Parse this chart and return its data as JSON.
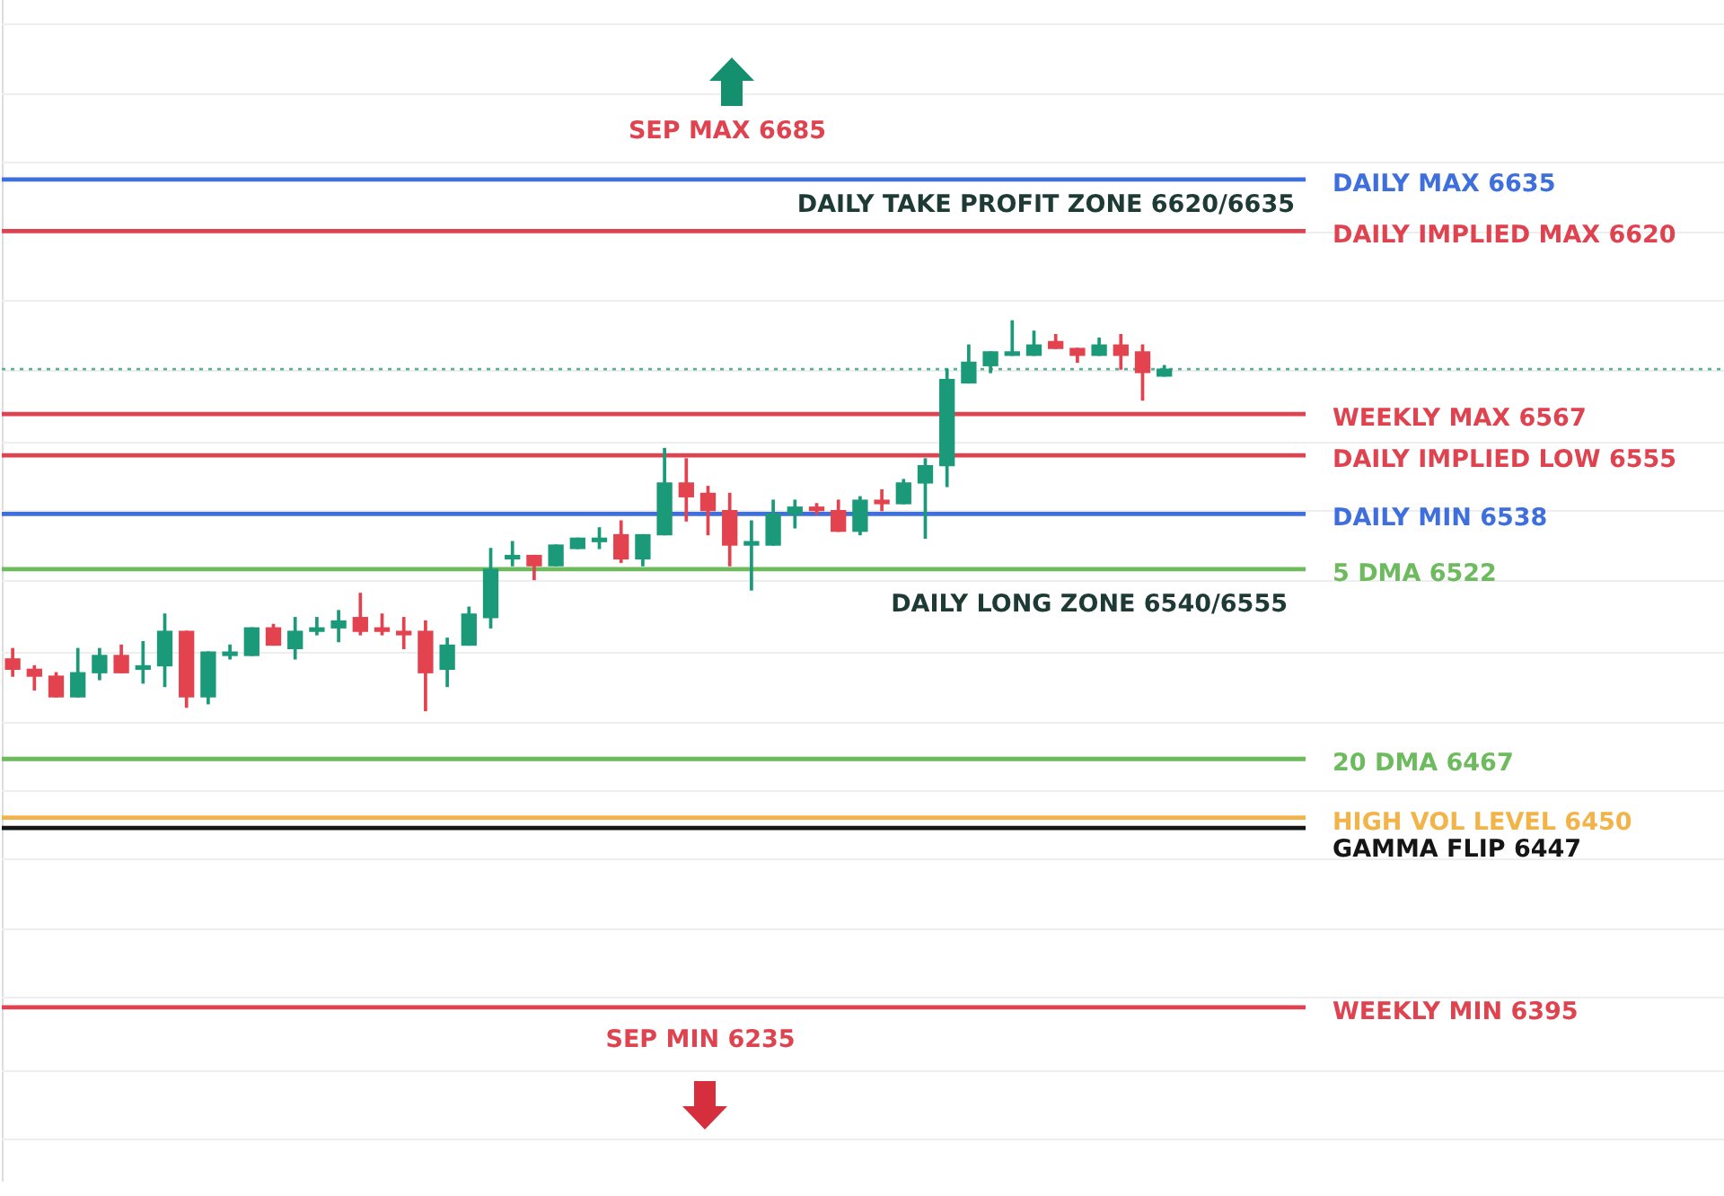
{
  "chart_data": {
    "type": "candlestick",
    "categories": [
      null,
      null,
      null,
      null,
      null,
      null,
      null,
      null,
      null,
      null,
      null,
      null,
      null,
      null,
      null,
      null,
      null,
      null,
      null,
      null,
      null,
      null,
      null,
      null,
      null,
      null,
      null,
      null,
      null,
      null,
      null,
      null,
      null,
      null,
      null,
      null,
      null,
      null,
      null,
      null,
      null,
      null,
      null,
      null,
      null,
      null,
      null,
      null,
      null,
      null,
      null,
      null,
      null,
      null
    ],
    "ohlc": [
      [
        6496,
        6499,
        6491,
        6493
      ],
      [
        6493,
        6494,
        6487,
        6491
      ],
      [
        6491,
        6492,
        6485,
        6485
      ],
      [
        6485,
        6499,
        6485,
        6492
      ],
      [
        6492,
        6499,
        6490,
        6497
      ],
      [
        6497,
        6500,
        6492,
        6492
      ],
      [
        6493,
        6501,
        6489,
        6494
      ],
      [
        6494,
        6509,
        6488,
        6504
      ],
      [
        6504,
        6504,
        6482,
        6485
      ],
      [
        6485,
        6498,
        6483,
        6498
      ],
      [
        6497,
        6500,
        6496,
        6498
      ],
      [
        6497,
        6505,
        6497,
        6505
      ],
      [
        6505,
        6506,
        6500,
        6500
      ],
      [
        6499,
        6508,
        6496,
        6504
      ],
      [
        6504,
        6508,
        6503,
        6505
      ],
      [
        6505,
        6510,
        6501,
        6507
      ],
      [
        6508,
        6515,
        6503,
        6504
      ],
      [
        6505,
        6509,
        6503,
        6504
      ],
      [
        6504,
        6508,
        6499,
        6503
      ],
      [
        6504,
        6507,
        6481,
        6492
      ],
      [
        6493,
        6502,
        6488,
        6500
      ],
      [
        6500,
        6511,
        6500,
        6509
      ],
      [
        6508,
        6528,
        6505,
        6522
      ],
      [
        6525,
        6530,
        6523,
        6526
      ],
      [
        6526,
        6526,
        6519,
        6523
      ],
      [
        6523,
        6529,
        6523,
        6529
      ],
      [
        6528,
        6531,
        6528,
        6531
      ],
      [
        6530,
        6534,
        6528,
        6531
      ],
      [
        6532,
        6536,
        6524,
        6525
      ],
      [
        6525,
        6532,
        6523,
        6532
      ],
      [
        6532,
        6557,
        6532,
        6547
      ],
      [
        6547,
        6554,
        6536,
        6543
      ],
      [
        6544,
        6546,
        6532,
        6539
      ],
      [
        6539,
        6544,
        6523,
        6529
      ],
      [
        6529,
        6536,
        6516,
        6530
      ],
      [
        6529,
        6542,
        6529,
        6538
      ],
      [
        6538,
        6542,
        6534,
        6540
      ],
      [
        6540,
        6541,
        6538,
        6539
      ],
      [
        6539,
        6542,
        6533,
        6533
      ],
      [
        6533,
        6543,
        6532,
        6542
      ],
      [
        6542,
        6545,
        6539,
        6541
      ],
      [
        6541,
        6548,
        6541,
        6547
      ],
      [
        6547,
        6554,
        6531,
        6552
      ],
      [
        6552,
        6580,
        6546,
        6577
      ],
      [
        6576,
        6587,
        6576,
        6582
      ],
      [
        6581,
        6585,
        6579,
        6585
      ],
      [
        6584,
        6594,
        6584,
        6585
      ],
      [
        6584,
        6591,
        6584,
        6587
      ],
      [
        6588,
        6590,
        6586,
        6586
      ],
      [
        6586,
        6586,
        6582,
        6584
      ],
      [
        6584,
        6589,
        6584,
        6587
      ],
      [
        6587,
        6590,
        6580,
        6584
      ],
      [
        6585,
        6587,
        6571,
        6579
      ],
      [
        6578,
        6581,
        6578,
        6580
      ]
    ],
    "colors": [
      "#e2434f",
      "#e2434f",
      "#e2434f",
      "#1b9a7a",
      "#1b9a7a",
      "#e2434f",
      "#1b9a7a",
      "#1b9a7a",
      "#e2434f",
      "#1b9a7a",
      "#1b9a7a",
      "#1b9a7a",
      "#e2434f",
      "#1b9a7a",
      "#1b9a7a",
      "#1b9a7a",
      "#e2434f",
      "#e2434f",
      "#e2434f",
      "#e2434f",
      "#1b9a7a",
      "#1b9a7a",
      "#1b9a7a",
      "#1b9a7a",
      "#e2434f",
      "#1b9a7a",
      "#1b9a7a",
      "#1b9a7a",
      "#e2434f",
      "#1b9a7a",
      "#1b9a7a",
      "#e2434f",
      "#e2434f",
      "#e2434f",
      "#1b9a7a",
      "#1b9a7a",
      "#1b9a7a",
      "#e2434f",
      "#e2434f",
      "#1b9a7a",
      "#e2434f",
      "#1b9a7a",
      "#1b9a7a",
      "#1b9a7a",
      "#1b9a7a",
      "#1b9a7a",
      "#1b9a7a",
      "#1b9a7a",
      "#e2434f",
      "#e2434f",
      "#1b9a7a",
      "#e2434f",
      "#e2434f",
      "#1b9a7a"
    ],
    "ylim": [
      6345,
      6687
    ],
    "yticks": [
      {
        "value": 6357,
        "label": null
      },
      {
        "value": 6377,
        "label": null
      },
      {
        "value": 6398,
        "label": null
      },
      {
        "value": 6418,
        "label": null
      },
      {
        "value": 6438,
        "label": null
      },
      {
        "value": 6458,
        "label": null
      },
      {
        "value": 6478,
        "label": null
      },
      {
        "value": 6498,
        "label": null
      },
      {
        "value": 6519,
        "label": null
      },
      {
        "value": 6539,
        "label": null
      },
      {
        "value": 6559,
        "label": null
      },
      {
        "value": 6580,
        "label": null
      },
      {
        "value": 6600,
        "label": null
      },
      {
        "value": 6620,
        "label": null
      },
      {
        "value": 6640,
        "label": null
      },
      {
        "value": 6660,
        "label": null
      },
      {
        "value": 6680,
        "label": null
      }
    ],
    "tick_labels": false,
    "grid": "y",
    "ref_lines": [
      {
        "axis": "y",
        "value": 6635,
        "label": "DAILY MAX 6635",
        "color": "#3e6fdc"
      },
      {
        "axis": "y",
        "value": 6620,
        "label": "DAILY IMPLIED MAX 6620",
        "color": "#df4350"
      },
      {
        "axis": "y",
        "value": 6580,
        "color": "#5fae95",
        "line_style": "dotted"
      },
      {
        "axis": "y",
        "value": 6567,
        "label": "WEEKLY MAX 6567",
        "color": "#df4350"
      },
      {
        "axis": "y",
        "value": 6555,
        "label": "DAILY IMPLIED LOW 6555",
        "color": "#df4350"
      },
      {
        "axis": "y",
        "value": 6538,
        "label": "DAILY MIN 6538",
        "color": "#3e6fdc"
      },
      {
        "axis": "y",
        "value": 6522,
        "label": "5 DMA 6522",
        "color": "#6dbb5e"
      },
      {
        "axis": "y",
        "value": 6467,
        "label": "20 DMA 6467",
        "color": "#6dbb5e"
      },
      {
        "axis": "y",
        "value": 6450,
        "label": "HIGH VOL LEVEL 6450",
        "color": "#f2b449"
      },
      {
        "axis": "y",
        "value": 6447,
        "label": "GAMMA FLIP 6447",
        "color": "#151515"
      },
      {
        "axis": "y",
        "value": 6395,
        "label": "WEEKLY MIN 6395",
        "color": "#df4350"
      }
    ],
    "annotations": [
      "SEP MAX 6685",
      "DAILY TAKE PROFIT ZONE 6620/6635",
      "DAILY LONG ZONE 6540/6555",
      "SEP MIN 6235"
    ]
  }
}
